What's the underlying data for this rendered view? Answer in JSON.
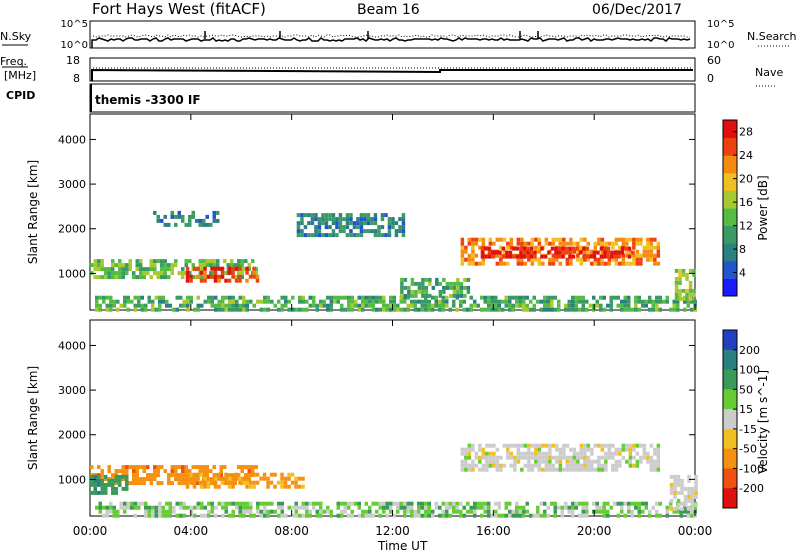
{
  "header": {
    "station": "Fort Hays West (fitACF)",
    "beam": "Beam 16",
    "date": "06/Dec/2017"
  },
  "side_labels": {
    "nsky": "N.Sky",
    "freq_line1": "Freq.",
    "freq_line2": "[MHz]",
    "cpid": "CPID",
    "nsearch": "N.Search",
    "nave": "Nave"
  },
  "panel_ticks": {
    "noise_top": "10^5",
    "noise_bottom": "10^0",
    "noise_right_top": "10^5",
    "noise_right_bottom": "10^0",
    "freq_top": "18",
    "freq_bottom": "8",
    "nave_top": "60",
    "nave_bottom": "0"
  },
  "cpid_text": "themis -3300 IF",
  "chart_data": [
    {
      "type": "heatmap",
      "panel": "power",
      "ylabel": "Slant Range [km]",
      "yticks": [
        1000,
        2000,
        3000,
        4000
      ],
      "ylim": [
        180,
        4570
      ],
      "xlim": [
        0,
        24
      ],
      "colorbar": {
        "label": "Power [dB]",
        "ticks": [
          4,
          8,
          12,
          16,
          20,
          24,
          28
        ],
        "range": [
          0,
          30
        ],
        "colors": [
          "#1a1aff",
          "#2255cc",
          "#2b8080",
          "#3a9a66",
          "#55bb44",
          "#a8c830",
          "#f0c020",
          "#f58a10",
          "#ee4010",
          "#e01010"
        ]
      },
      "regions": [
        {
          "t": [
            0.0,
            6.6
          ],
          "r": [
            950,
            1320
          ],
          "value": 14
        },
        {
          "t": [
            3.8,
            6.6
          ],
          "r": [
            850,
            1150
          ],
          "value": 26
        },
        {
          "t": [
            14.7,
            22.5
          ],
          "r": [
            1250,
            1800
          ],
          "value": 22
        },
        {
          "t": [
            15.5,
            21.5
          ],
          "r": [
            1400,
            1600
          ],
          "value": 28
        },
        {
          "t": [
            2.5,
            5.0
          ],
          "r": [
            2100,
            2400
          ],
          "value": 8
        },
        {
          "t": [
            8.2,
            12.5
          ],
          "r": [
            1900,
            2350
          ],
          "value": 8
        },
        {
          "t": [
            0.2,
            24.0
          ],
          "r": [
            200,
            500
          ],
          "value": 12
        },
        {
          "t": [
            12.3,
            15.0
          ],
          "r": [
            500,
            900
          ],
          "value": 12
        },
        {
          "t": [
            23.2,
            24.0
          ],
          "r": [
            400,
            1100
          ],
          "value": 16
        }
      ]
    },
    {
      "type": "heatmap",
      "panel": "velocity",
      "ylabel": "Slant Range [km]",
      "xlabel": "Time UT",
      "yticks": [
        1000,
        2000,
        3000,
        4000
      ],
      "xticks": [
        "00:00",
        "04:00",
        "08:00",
        "12:00",
        "16:00",
        "20:00",
        "00:00"
      ],
      "ylim": [
        180,
        4570
      ],
      "xlim": [
        0,
        24
      ],
      "colorbar": {
        "label": "Velocity [m s^-1]",
        "ticks": [
          "200",
          "100",
          "50",
          "15",
          "-15",
          "-50",
          "-100",
          "-200"
        ],
        "colors": [
          "#2040c0",
          "#2a8080",
          "#3a9a5a",
          "#66cc33",
          "#cccccc",
          "#f0c020",
          "#f59010",
          "#f05010",
          "#e01010"
        ]
      },
      "regions": [
        {
          "t": [
            0.0,
            6.6
          ],
          "r": [
            950,
            1320
          ],
          "value": -60
        },
        {
          "t": [
            0.0,
            1.5
          ],
          "r": [
            700,
            1100
          ],
          "value": 60
        },
        {
          "t": [
            3.8,
            8.5
          ],
          "r": [
            850,
            1150
          ],
          "value": -40
        },
        {
          "t": [
            14.7,
            22.5
          ],
          "r": [
            1250,
            1800
          ],
          "value": 0
        },
        {
          "t": [
            0.2,
            24.0
          ],
          "r": [
            200,
            500
          ],
          "value": 20
        },
        {
          "t": [
            23.0,
            24.0
          ],
          "r": [
            300,
            1100
          ],
          "value": 0
        }
      ]
    }
  ]
}
